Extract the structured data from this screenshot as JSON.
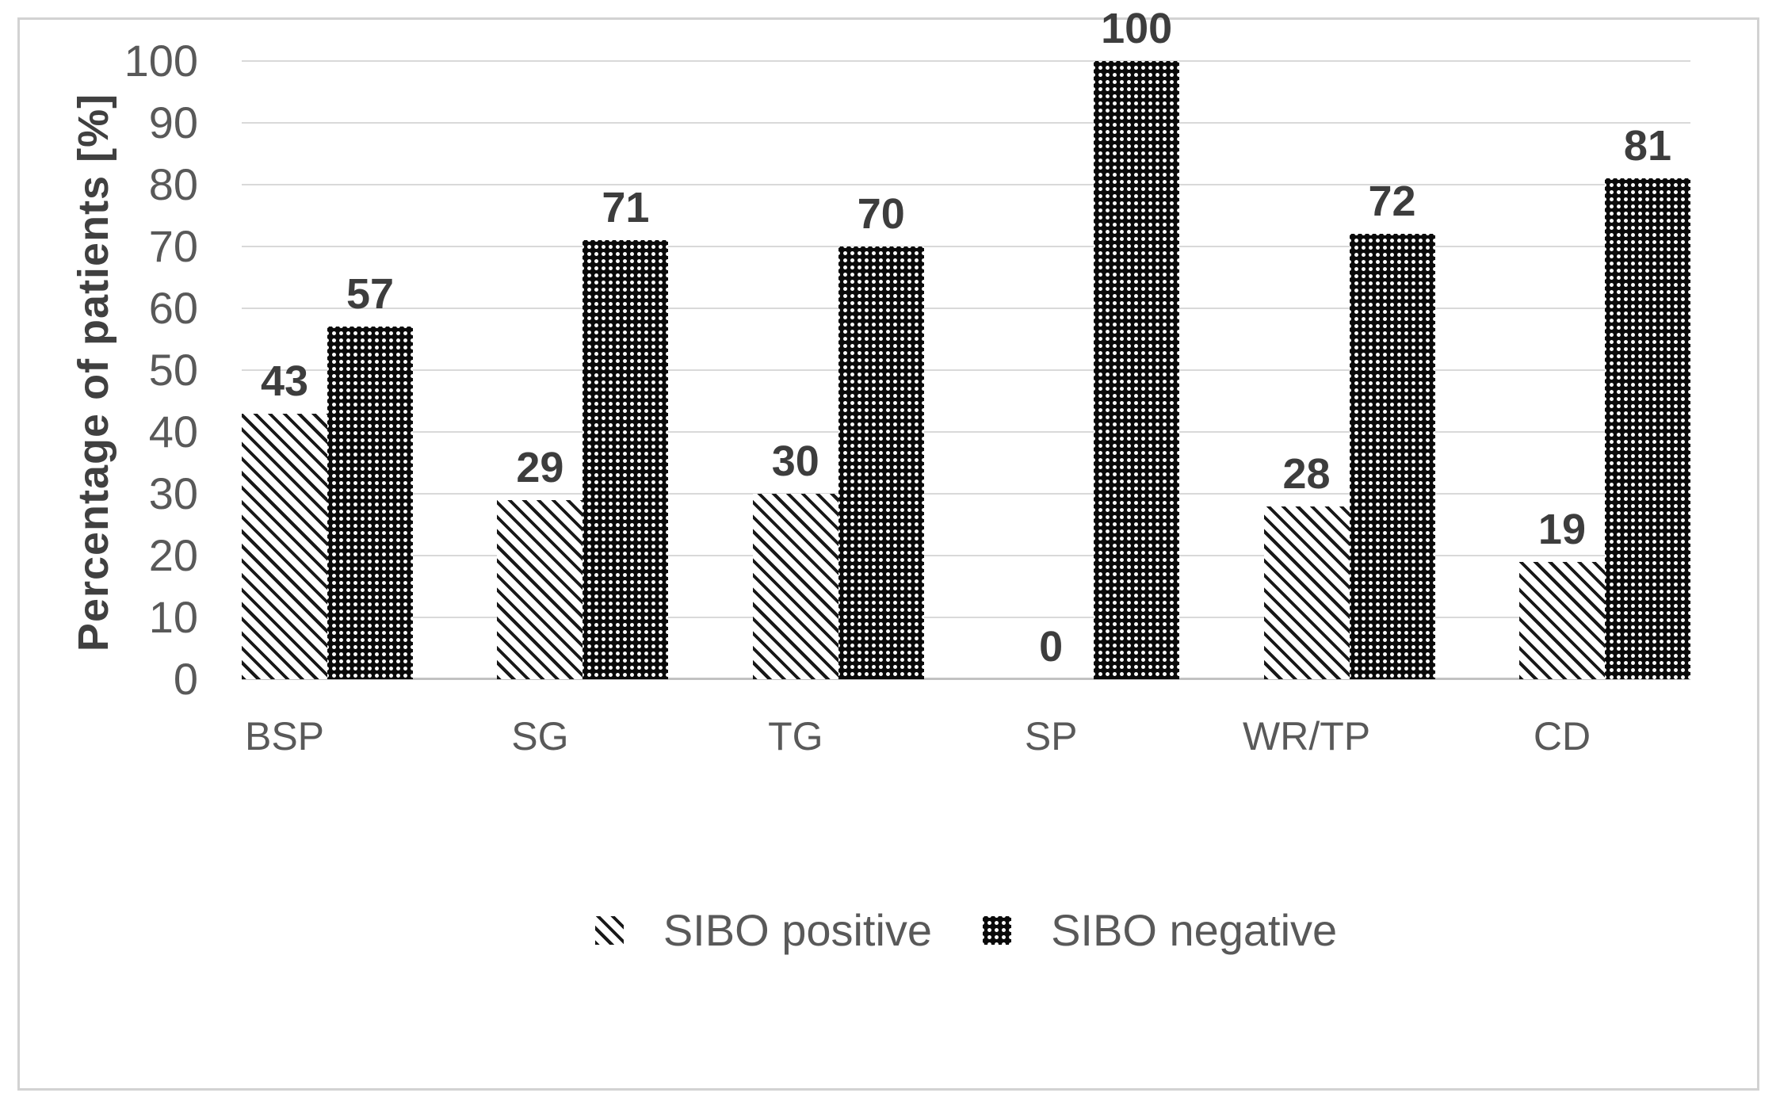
{
  "chart_data": {
    "type": "bar",
    "categories": [
      "BSP",
      "SG",
      "TG",
      "SP",
      "WR/TP",
      "CD"
    ],
    "series": [
      {
        "name": "SIBO positive",
        "pattern": "diagonal-hatch",
        "values": [
          43,
          29,
          30,
          0,
          28,
          19
        ]
      },
      {
        "name": "SIBO negative",
        "pattern": "dots-on-black",
        "values": [
          57,
          71,
          70,
          100,
          72,
          81
        ]
      }
    ],
    "title": "",
    "xlabel": "",
    "ylabel": "Percentage of patients [%]",
    "ylim": [
      0,
      100
    ],
    "yticks": [
      0,
      10,
      20,
      30,
      40,
      50,
      60,
      70,
      80,
      90,
      100
    ],
    "grid": "horizontal",
    "legend_position": "bottom",
    "value_labels": true
  },
  "colors": {
    "background": "#ffffff",
    "frame_border": "#d2d2d2",
    "gridline": "#d9d9d9",
    "axis_line": "#c2c2c2",
    "axis_tick_text": "#595959",
    "category_text": "#595959",
    "value_label_text": "#3d3d3d",
    "axis_title_text": "#404040",
    "bar_ink": "#0a0a0a"
  }
}
